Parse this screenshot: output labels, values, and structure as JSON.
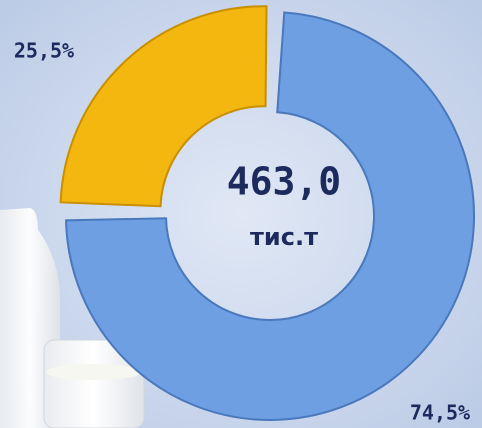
{
  "chart_data": {
    "type": "donut",
    "center_value": "463,0",
    "center_unit": "тис.т",
    "values": [
      74.5,
      25.5
    ],
    "value_labels": [
      "74,5%",
      "25,5%"
    ],
    "colors": [
      "#6e9fe2",
      "#f3b70f"
    ]
  }
}
